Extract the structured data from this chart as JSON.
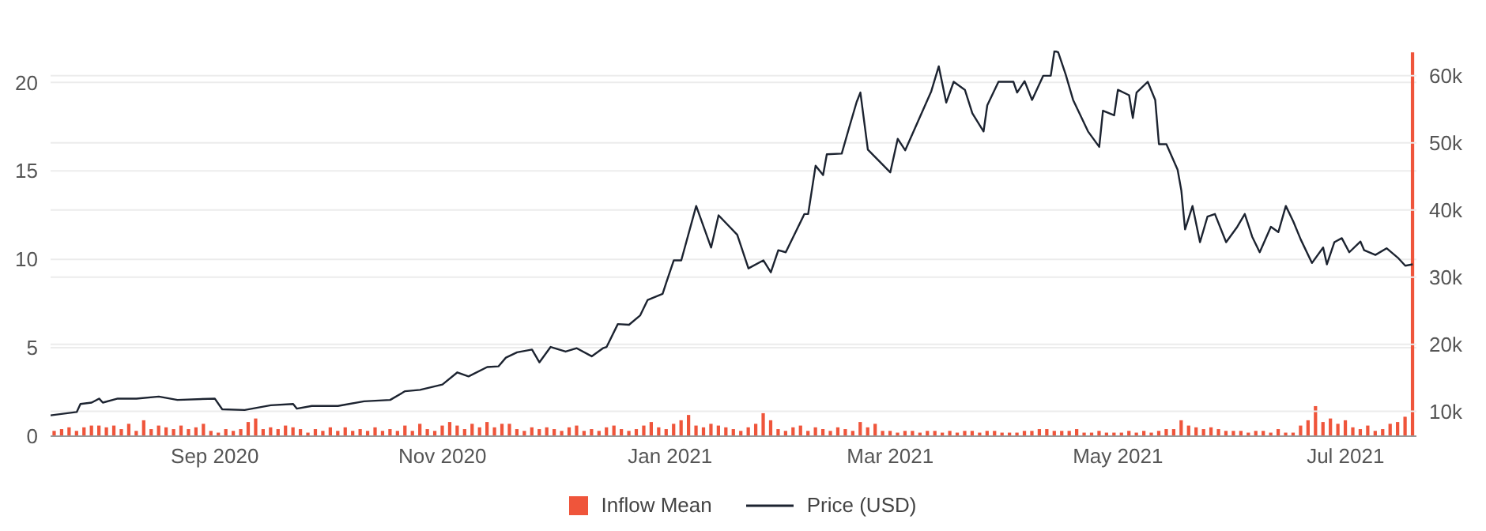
{
  "chart_data": {
    "type": "bar",
    "x": [
      "2020-07-20",
      "2020-07-22",
      "2020-07-24",
      "2020-07-26",
      "2020-07-28",
      "2020-07-30",
      "2020-08-01",
      "2020-08-03",
      "2020-08-05",
      "2020-08-07",
      "2020-08-09",
      "2020-08-11",
      "2020-08-13",
      "2020-08-15",
      "2020-08-17",
      "2020-08-19",
      "2020-08-21",
      "2020-08-23",
      "2020-08-25",
      "2020-08-27",
      "2020-08-29",
      "2020-08-31",
      "2020-09-02",
      "2020-09-04",
      "2020-09-06",
      "2020-09-08",
      "2020-09-10",
      "2020-09-12",
      "2020-09-14",
      "2020-09-16",
      "2020-09-18",
      "2020-09-20",
      "2020-09-22",
      "2020-09-24",
      "2020-09-26",
      "2020-09-28",
      "2020-09-30",
      "2020-10-02",
      "2020-10-04",
      "2020-10-06",
      "2020-10-08",
      "2020-10-10",
      "2020-10-12",
      "2020-10-14",
      "2020-10-16",
      "2020-10-18",
      "2020-10-20",
      "2020-10-22",
      "2020-10-24",
      "2020-10-26",
      "2020-10-28",
      "2020-10-30",
      "2020-11-01",
      "2020-11-03",
      "2020-11-05",
      "2020-11-07",
      "2020-11-09",
      "2020-11-11",
      "2020-11-13",
      "2020-11-15",
      "2020-11-17",
      "2020-11-19",
      "2020-11-21",
      "2020-11-23",
      "2020-11-25",
      "2020-11-27",
      "2020-11-29",
      "2020-12-01",
      "2020-12-03",
      "2020-12-05",
      "2020-12-07",
      "2020-12-09",
      "2020-12-11",
      "2020-12-13",
      "2020-12-15",
      "2020-12-17",
      "2020-12-19",
      "2020-12-21",
      "2020-12-23",
      "2020-12-25",
      "2020-12-27",
      "2020-12-29",
      "2020-12-31",
      "2021-01-02",
      "2021-01-04",
      "2021-01-06",
      "2021-01-08",
      "2021-01-10",
      "2021-01-12",
      "2021-01-14",
      "2021-01-16",
      "2021-01-18",
      "2021-01-20",
      "2021-01-22",
      "2021-01-24",
      "2021-01-26",
      "2021-01-28",
      "2021-01-30",
      "2021-02-01",
      "2021-02-03",
      "2021-02-05",
      "2021-02-07",
      "2021-02-09",
      "2021-02-11",
      "2021-02-13",
      "2021-02-15",
      "2021-02-17",
      "2021-02-19",
      "2021-02-21",
      "2021-02-23",
      "2021-02-25",
      "2021-02-27",
      "2021-03-01",
      "2021-03-03",
      "2021-03-05",
      "2021-03-07",
      "2021-03-09",
      "2021-03-11",
      "2021-03-13",
      "2021-03-15",
      "2021-03-17",
      "2021-03-19",
      "2021-03-21",
      "2021-03-23",
      "2021-03-25",
      "2021-03-27",
      "2021-03-29",
      "2021-03-31",
      "2021-04-02",
      "2021-04-04",
      "2021-04-06",
      "2021-04-08",
      "2021-04-10",
      "2021-04-12",
      "2021-04-14",
      "2021-04-16",
      "2021-04-18",
      "2021-04-20",
      "2021-04-22",
      "2021-04-24",
      "2021-04-26",
      "2021-04-28",
      "2021-04-30",
      "2021-05-02",
      "2021-05-04",
      "2021-05-06",
      "2021-05-08",
      "2021-05-10",
      "2021-05-12",
      "2021-05-14",
      "2021-05-16",
      "2021-05-18",
      "2021-05-20",
      "2021-05-22",
      "2021-05-24",
      "2021-05-26",
      "2021-05-28",
      "2021-05-30",
      "2021-06-01",
      "2021-06-03",
      "2021-06-05",
      "2021-06-07",
      "2021-06-09",
      "2021-06-11",
      "2021-06-13",
      "2021-06-15",
      "2021-06-17",
      "2021-06-19",
      "2021-06-21",
      "2021-06-23",
      "2021-06-25",
      "2021-06-27",
      "2021-06-29",
      "2021-07-01",
      "2021-07-03",
      "2021-07-05",
      "2021-07-07",
      "2021-07-09",
      "2021-07-11",
      "2021-07-13",
      "2021-07-15",
      "2021-07-17",
      "2021-07-19"
    ],
    "series": [
      {
        "name": "Inflow Mean",
        "color": "#ef553b",
        "values": [
          0.3,
          0.4,
          0.5,
          0.3,
          0.5,
          0.6,
          0.6,
          0.5,
          0.6,
          0.4,
          0.7,
          0.3,
          0.9,
          0.4,
          0.6,
          0.5,
          0.4,
          0.6,
          0.4,
          0.5,
          0.7,
          0.3,
          0.2,
          0.4,
          0.3,
          0.4,
          0.8,
          1.0,
          0.4,
          0.5,
          0.4,
          0.6,
          0.5,
          0.4,
          0.2,
          0.4,
          0.3,
          0.5,
          0.3,
          0.5,
          0.3,
          0.4,
          0.3,
          0.5,
          0.3,
          0.4,
          0.3,
          0.6,
          0.3,
          0.7,
          0.4,
          0.3,
          0.6,
          0.8,
          0.6,
          0.4,
          0.7,
          0.5,
          0.8,
          0.5,
          0.7,
          0.7,
          0.4,
          0.3,
          0.5,
          0.4,
          0.5,
          0.4,
          0.3,
          0.5,
          0.6,
          0.3,
          0.4,
          0.3,
          0.5,
          0.6,
          0.4,
          0.3,
          0.4,
          0.6,
          0.8,
          0.5,
          0.4,
          0.7,
          0.9,
          1.2,
          0.6,
          0.5,
          0.7,
          0.6,
          0.5,
          0.4,
          0.3,
          0.5,
          0.7,
          1.3,
          0.9,
          0.4,
          0.3,
          0.5,
          0.6,
          0.3,
          0.5,
          0.4,
          0.3,
          0.5,
          0.4,
          0.3,
          0.8,
          0.5,
          0.7,
          0.3,
          0.3,
          0.2,
          0.3,
          0.3,
          0.2,
          0.3,
          0.3,
          0.2,
          0.3,
          0.2,
          0.3,
          0.3,
          0.2,
          0.3,
          0.3,
          0.2,
          0.2,
          0.2,
          0.3,
          0.3,
          0.4,
          0.4,
          0.3,
          0.3,
          0.3,
          0.4,
          0.2,
          0.2,
          0.3,
          0.2,
          0.2,
          0.2,
          0.3,
          0.2,
          0.3,
          0.2,
          0.3,
          0.4,
          0.4,
          0.9,
          0.6,
          0.5,
          0.4,
          0.5,
          0.4,
          0.3,
          0.3,
          0.3,
          0.2,
          0.3,
          0.3,
          0.2,
          0.4,
          0.2,
          0.2,
          0.6,
          0.9,
          1.7,
          0.8,
          1.0,
          0.7,
          0.9,
          0.5,
          0.4,
          0.6,
          0.3,
          0.4,
          0.7,
          0.8,
          1.1,
          21.7
        ]
      },
      {
        "name": "Price (USD)",
        "type": "line",
        "axis": "y2",
        "color": "#1c2330",
        "x": [
          "2020-07-19",
          "2020-07-26",
          "2020-07-27",
          "2020-07-30",
          "2020-08-01",
          "2020-08-02",
          "2020-08-06",
          "2020-08-11",
          "2020-08-17",
          "2020-08-22",
          "2020-09-01",
          "2020-09-03",
          "2020-09-09",
          "2020-09-16",
          "2020-09-22",
          "2020-09-23",
          "2020-09-27",
          "2020-10-04",
          "2020-10-11",
          "2020-10-18",
          "2020-10-22",
          "2020-10-26",
          "2020-11-01",
          "2020-11-05",
          "2020-11-08",
          "2020-11-13",
          "2020-11-16",
          "2020-11-18",
          "2020-11-21",
          "2020-11-25",
          "2020-11-27",
          "2020-11-30",
          "2020-12-04",
          "2020-12-07",
          "2020-12-11",
          "2020-12-14",
          "2020-12-15",
          "2020-12-18",
          "2020-12-21",
          "2020-12-24",
          "2020-12-26",
          "2020-12-30",
          "2020-12-31",
          "2021-01-02",
          "2021-01-04",
          "2021-01-08",
          "2021-01-12",
          "2021-01-14",
          "2021-01-19",
          "2021-01-22",
          "2021-01-26",
          "2021-01-28",
          "2021-01-30",
          "2021-02-01",
          "2021-02-06",
          "2021-02-07",
          "2021-02-09",
          "2021-02-11",
          "2021-02-12",
          "2021-02-16",
          "2021-02-18",
          "2021-02-20",
          "2021-02-21",
          "2021-02-23",
          "2021-03-01",
          "2021-03-03",
          "2021-03-05",
          "2021-03-12",
          "2021-03-14",
          "2021-03-16",
          "2021-03-18",
          "2021-03-21",
          "2021-03-23",
          "2021-03-26",
          "2021-03-27",
          "2021-03-30",
          "2021-04-03",
          "2021-04-04",
          "2021-04-06",
          "2021-04-08",
          "2021-04-11",
          "2021-04-13",
          "2021-04-14",
          "2021-04-15",
          "2021-04-17",
          "2021-04-19",
          "2021-04-23",
          "2021-04-26",
          "2021-04-27",
          "2021-04-30",
          "2021-05-01",
          "2021-05-04",
          "2021-05-05",
          "2021-05-06",
          "2021-05-09",
          "2021-05-11",
          "2021-05-12",
          "2021-05-14",
          "2021-05-17",
          "2021-05-18",
          "2021-05-19",
          "2021-05-21",
          "2021-05-23",
          "2021-05-25",
          "2021-05-27",
          "2021-05-30",
          "2021-06-02",
          "2021-06-04",
          "2021-06-06",
          "2021-06-08",
          "2021-06-11",
          "2021-06-13",
          "2021-06-15",
          "2021-06-17",
          "2021-06-19",
          "2021-06-22",
          "2021-06-25",
          "2021-06-26",
          "2021-06-28",
          "2021-06-30",
          "2021-07-02",
          "2021-07-05",
          "2021-07-06",
          "2021-07-09",
          "2021-07-12",
          "2021-07-15",
          "2021-07-17",
          "2021-07-19"
        ],
        "values": [
          9400,
          9900,
          11100,
          11300,
          11900,
          11300,
          11900,
          11900,
          12200,
          11700,
          11900,
          10300,
          10200,
          10900,
          11100,
          10400,
          10800,
          10800,
          11500,
          11700,
          13000,
          13200,
          14000,
          15800,
          15200,
          16600,
          16700,
          18000,
          18800,
          19200,
          17300,
          19600,
          18900,
          19400,
          18200,
          19400,
          19600,
          23000,
          22900,
          24300,
          26600,
          27500,
          29200,
          32500,
          32500,
          40600,
          34400,
          39200,
          36300,
          31300,
          32500,
          30700,
          34000,
          33700,
          39400,
          39400,
          46600,
          45200,
          48300,
          48400,
          52300,
          56100,
          57500,
          49000,
          45600,
          50600,
          48900,
          57700,
          61400,
          56000,
          59100,
          57900,
          54400,
          51700,
          55600,
          59100,
          59100,
          57500,
          59200,
          56400,
          60000,
          60000,
          63700,
          63500,
          60200,
          56400,
          51700,
          49400,
          54800,
          54100,
          57900,
          57100,
          53700,
          57500,
          59100,
          56400,
          49800,
          49800,
          46000,
          42900,
          37100,
          40600,
          35200,
          39000,
          39400,
          35200,
          37500,
          39400,
          36000,
          33700,
          37500,
          36700,
          40600,
          38300,
          35600,
          32100,
          34400,
          31900,
          35200,
          35800,
          33700,
          35300,
          34000,
          33300,
          34300,
          32900,
          31700,
          31900
        ]
      }
    ],
    "xlim": [
      "2020-07-19",
      "2021-07-20"
    ],
    "xticks": [
      {
        "value": "2020-09-01",
        "label": "Sep 2020"
      },
      {
        "value": "2020-11-01",
        "label": "Nov 2020"
      },
      {
        "value": "2021-01-01",
        "label": "Jan 2021"
      },
      {
        "value": "2021-03-01",
        "label": "Mar 2021"
      },
      {
        "value": "2021-05-01",
        "label": "May 2021"
      },
      {
        "value": "2021-07-01",
        "label": "Jul 2021"
      }
    ],
    "ylim": [
      0,
      21.8
    ],
    "yticks": [
      0,
      5,
      10,
      15,
      20
    ],
    "y2lim": [
      6300,
      63750
    ],
    "y2ticks": [
      {
        "value": 10000,
        "label": "10k"
      },
      {
        "value": 20000,
        "label": "20k"
      },
      {
        "value": 30000,
        "label": "30k"
      },
      {
        "value": 40000,
        "label": "40k"
      },
      {
        "value": 50000,
        "label": "50k"
      },
      {
        "value": 60000,
        "label": "60k"
      }
    ],
    "grid": true,
    "legend": "bottom",
    "marker": "none",
    "line_style": "solid"
  }
}
